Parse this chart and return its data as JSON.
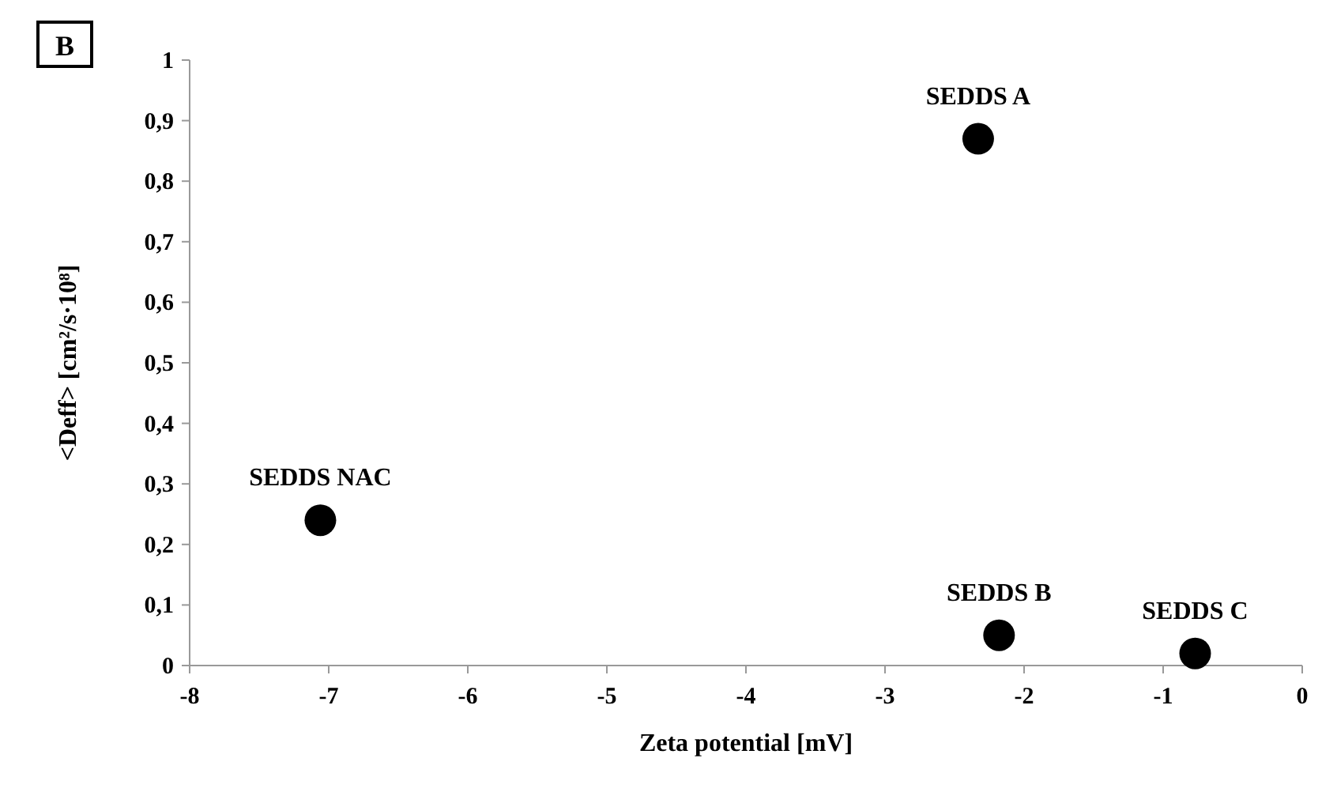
{
  "chart_data": {
    "type": "scatter",
    "xlabel": "Zeta potential [mV]",
    "ylabel": "<Deff> [cm²/s·10⁸]",
    "x": [
      -7.06,
      -2.33,
      -2.18,
      -0.77
    ],
    "values": [
      0.24,
      0.87,
      0.05,
      0.02
    ],
    "color": "#000000",
    "marker": "circle",
    "xlim": [
      -8,
      0
    ],
    "xticks": [
      -8,
      -7,
      -6,
      -5,
      -4,
      -3,
      -2,
      -1,
      0
    ],
    "ylim": [
      0,
      1
    ],
    "yticks": [
      0,
      {
        "value": 0.1,
        "label": "0,1"
      },
      {
        "value": 0.2,
        "label": "0,2"
      },
      {
        "value": 0.3,
        "label": "0,3"
      },
      {
        "value": 0.4,
        "label": "0,4"
      },
      {
        "value": 0.5,
        "label": "0,5"
      },
      {
        "value": 0.6,
        "label": "0,6"
      },
      {
        "value": 0.7,
        "label": "0,7"
      },
      {
        "value": 0.8,
        "label": "0,8"
      },
      {
        "value": 0.9,
        "label": "0,9"
      },
      1
    ],
    "annotations": [
      "B",
      {
        "text": "SEDDS NAC",
        "x": -7.06,
        "y": 0.24
      },
      {
        "text": "SEDDS A",
        "x": -2.33,
        "y": 0.87
      },
      {
        "text": "SEDDS B",
        "x": -2.18,
        "y": 0.05
      },
      {
        "text": "SEDDS C",
        "x": -0.77,
        "y": 0.02
      }
    ]
  }
}
